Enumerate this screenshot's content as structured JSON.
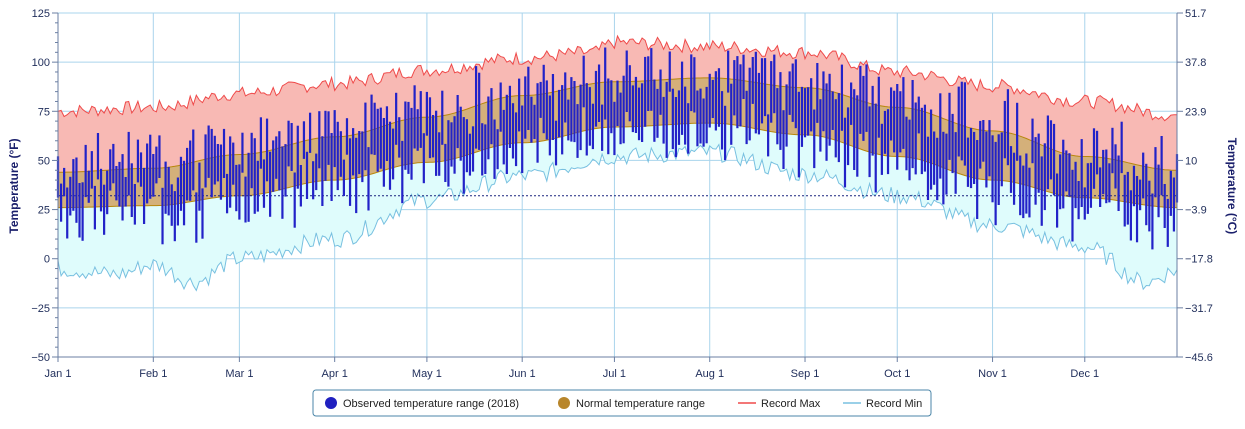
{
  "chart_data": {
    "type": "area",
    "title": "",
    "xlabel": "",
    "ylabel_left": "Temperature (°F)",
    "ylabel_right": "Temperature (°C)",
    "y_left_ticks": [
      "−50",
      "−25",
      "0",
      "25",
      "50",
      "75",
      "100",
      "125"
    ],
    "y_right_ticks": [
      "−45.6",
      "−31.7",
      "−17.8",
      "−3.9",
      "10",
      "23.9",
      "37.8",
      "51.7"
    ],
    "ylim_f": [
      -50,
      125
    ],
    "x_ticks": [
      {
        "label": "Jan 1",
        "doy": 1
      },
      {
        "label": "Feb 1",
        "doy": 32
      },
      {
        "label": "Mar 1",
        "doy": 60
      },
      {
        "label": "Apr 1",
        "doy": 91
      },
      {
        "label": "May 1",
        "doy": 121
      },
      {
        "label": "Jun 1",
        "doy": 152
      },
      {
        "label": "Jul 1",
        "doy": 182
      },
      {
        "label": "Aug 1",
        "doy": 213
      },
      {
        "label": "Sep 1",
        "doy": 244
      },
      {
        "label": "Oct 1",
        "doy": 274
      },
      {
        "label": "Nov 1",
        "doy": 305
      },
      {
        "label": "Dec 1",
        "doy": 335
      }
    ],
    "freezing_line_f": 32,
    "grid": true,
    "legend_position": "bottom-center",
    "colors": {
      "observed": "#2222c8",
      "normal_fill": "#d4b07a",
      "normal_stroke": "#b8860b",
      "record_max_fill": "#f8b9b4",
      "record_max_line": "#ef4a4a",
      "record_min_fill": "#dffcfc",
      "record_min_line": "#78c0e0",
      "grid": "#aad4ec",
      "freezing_line": "#1a237e"
    },
    "series": [
      {
        "name": "Observed temperature range (2018)",
        "legend_marker": "circle",
        "color": "#2222c8"
      },
      {
        "name": "Normal temperature range",
        "legend_marker": "circle",
        "color": "#b8862b"
      },
      {
        "name": "Record Max",
        "legend_marker": "line",
        "color": "#ef4a4a"
      },
      {
        "name": "Record Min",
        "legend_marker": "line",
        "color": "#78c0e0"
      }
    ],
    "normal_high_f": [
      {
        "doy": 1,
        "value": 44
      },
      {
        "doy": 32,
        "value": 46
      },
      {
        "doy": 60,
        "value": 53
      },
      {
        "doy": 91,
        "value": 62
      },
      {
        "doy": 121,
        "value": 72
      },
      {
        "doy": 152,
        "value": 83
      },
      {
        "doy": 182,
        "value": 90
      },
      {
        "doy": 213,
        "value": 92
      },
      {
        "doy": 244,
        "value": 87
      },
      {
        "doy": 274,
        "value": 77
      },
      {
        "doy": 305,
        "value": 65
      },
      {
        "doy": 335,
        "value": 52
      },
      {
        "doy": 365,
        "value": 45
      }
    ],
    "normal_low_f": [
      {
        "doy": 1,
        "value": 26
      },
      {
        "doy": 32,
        "value": 27
      },
      {
        "doy": 60,
        "value": 32
      },
      {
        "doy": 91,
        "value": 40
      },
      {
        "doy": 121,
        "value": 49
      },
      {
        "doy": 152,
        "value": 59
      },
      {
        "doy": 182,
        "value": 67
      },
      {
        "doy": 213,
        "value": 69
      },
      {
        "doy": 244,
        "value": 63
      },
      {
        "doy": 274,
        "value": 52
      },
      {
        "doy": 305,
        "value": 40
      },
      {
        "doy": 335,
        "value": 31
      },
      {
        "doy": 365,
        "value": 26
      }
    ],
    "record_max_f": [
      {
        "doy": 1,
        "value": 75
      },
      {
        "doy": 32,
        "value": 77
      },
      {
        "doy": 60,
        "value": 84
      },
      {
        "doy": 91,
        "value": 89
      },
      {
        "doy": 121,
        "value": 96
      },
      {
        "doy": 152,
        "value": 102
      },
      {
        "doy": 175,
        "value": 105
      },
      {
        "doy": 182,
        "value": 110
      },
      {
        "doy": 213,
        "value": 108
      },
      {
        "doy": 244,
        "value": 105
      },
      {
        "doy": 274,
        "value": 95
      },
      {
        "doy": 305,
        "value": 88
      },
      {
        "doy": 335,
        "value": 80
      },
      {
        "doy": 365,
        "value": 73
      }
    ],
    "record_min_f": [
      {
        "doy": 1,
        "value": -5
      },
      {
        "doy": 20,
        "value": -8
      },
      {
        "doy": 32,
        "value": -3
      },
      {
        "doy": 45,
        "value": -12
      },
      {
        "doy": 60,
        "value": 0
      },
      {
        "doy": 91,
        "value": 10
      },
      {
        "doy": 121,
        "value": 30
      },
      {
        "doy": 152,
        "value": 42
      },
      {
        "doy": 182,
        "value": 52
      },
      {
        "doy": 213,
        "value": 54
      },
      {
        "doy": 244,
        "value": 43
      },
      {
        "doy": 274,
        "value": 32
      },
      {
        "doy": 305,
        "value": 17
      },
      {
        "doy": 335,
        "value": 6
      },
      {
        "doy": 355,
        "value": -12
      },
      {
        "doy": 365,
        "value": -6
      }
    ]
  },
  "legend": {
    "observed": "Observed temperature range (2018)",
    "normal": "Normal temperature range",
    "record_max": "Record Max",
    "record_min": "Record Min"
  }
}
